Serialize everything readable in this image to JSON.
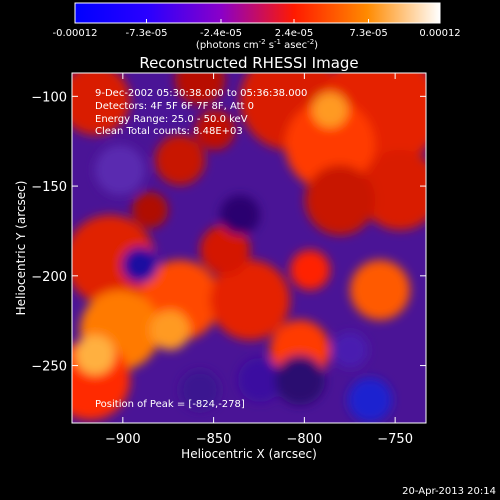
{
  "colorbar": {
    "ticks": [
      "-0.00012",
      "-7.3e-05",
      "-2.4e-05",
      "2.4e-05",
      "7.3e-05",
      "0.00012"
    ],
    "tick_values": [
      -0.00012,
      -7.3e-05,
      -2.4e-05,
      2.4e-05,
      7.3e-05,
      0.00012
    ],
    "units_main": "(photons cm",
    "units_sup1": "-2",
    "units_mid": " s",
    "units_sup2": "-1",
    "units_end": " asec",
    "units_sup3": "-2",
    "units_close": ")",
    "stops": [
      "#0000ff",
      "#2a00ff",
      "#8a00c8",
      "#ff1a00",
      "#ff8a00",
      "#ffffff"
    ]
  },
  "annotations": {
    "time": "9-Dec-2002 05:30:38.000 to 05:36:38.000",
    "detectors": "Detectors: 4F 5F 6F 7F 8F, Att 0",
    "energy": "Energy Range: 25.0 - 50.0 keV",
    "clean": "Clean    Total counts: 8.48E+03",
    "peak": "Position of Peak = [-824,-278]"
  },
  "footer_date": "20-Apr-2013 20:14",
  "chart_data": {
    "type": "heatmap",
    "title": "Reconstructed RHESSI Image",
    "xlabel": "Heliocentric X (arcsec)",
    "ylabel": "Heliocentric Y (arcsec)",
    "xlim": [
      -928,
      -733
    ],
    "ylim": [
      -282,
      -87
    ],
    "xticks": [
      -900,
      -850,
      -800,
      -750
    ],
    "yticks": [
      -100,
      -150,
      -200,
      -250
    ],
    "zlim": [
      -0.00012,
      0.00012
    ],
    "peak_position": [
      -824,
      -278
    ]
  }
}
